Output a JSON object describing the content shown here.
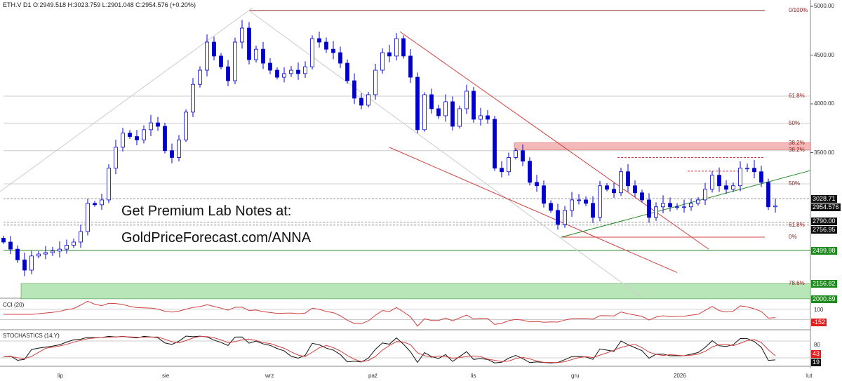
{
  "header": {
    "text": "ETH.V  D1  O:2949.518  H:3023.759  L:2901.048  C:2954.576  (+0.20%)"
  },
  "promo": {
    "line1": "Get Premium Lab Notes at:",
    "line2": "GoldPriceForecast.com/ANNA"
  },
  "colors": {
    "candle": "#0000cc",
    "fib": "#8b1a1a",
    "channel": "#d04040",
    "green": "#2a8a2a",
    "band_red": "#f4b8b8",
    "band_green": "#b8e6b8"
  },
  "chart_data": {
    "type": "candlestick",
    "symbol": "ETH.V",
    "timeframe": "D1",
    "ylim": [
      1950,
      5050
    ],
    "yticks": [
      "5000.00",
      "4500.00",
      "4000.00",
      "3500.00"
    ],
    "ytick_values": [
      5000,
      4500,
      4000,
      3500
    ],
    "xticks": [
      {
        "label": "lip",
        "i": 8.3
      },
      {
        "label": "sie",
        "i": 23.2
      },
      {
        "label": "wrz",
        "i": 37.9
      },
      {
        "label": "paź",
        "i": 52.6
      },
      {
        "label": "lis",
        "i": 67.2
      },
      {
        "label": "gru",
        "i": 81.5
      },
      {
        "label": "2026",
        "i": 96.1
      },
      {
        "label": "lut",
        "i": 115
      }
    ],
    "closes": [
      2583,
      2510,
      2400,
      2295,
      2440,
      2460,
      2475,
      2490,
      2510,
      2550,
      2583,
      2690,
      2980,
      2965,
      3015,
      3340,
      3555,
      3700,
      3665,
      3630,
      3735,
      3805,
      3770,
      3520,
      3450,
      3630,
      3915,
      4200,
      4345,
      4633,
      4490,
      4380,
      4237,
      4633,
      4777,
      4453,
      4560,
      4417,
      4345,
      4273,
      4310,
      4345,
      4310,
      4380,
      4669,
      4633,
      4560,
      4525,
      4417,
      4237,
      4058,
      3986,
      4094,
      4345,
      4525,
      4490,
      4669,
      4490,
      4273,
      3735,
      4094,
      3950,
      3878,
      4022,
      3770,
      3950,
      4130,
      3842,
      3878,
      3842,
      3340,
      3304,
      3450,
      3520,
      3412,
      3195,
      3160,
      2980,
      2908,
      2764,
      2908,
      3015,
      3015,
      2980,
      2836,
      3160,
      3124,
      3088,
      3304,
      3160,
      3088,
      3015,
      2836,
      2944,
      2980,
      2944,
      2944,
      2944,
      2980,
      3015,
      3124,
      3268,
      3160,
      3124,
      3160,
      3340,
      3340,
      3304,
      3195,
      2944,
      2954
    ],
    "hlines": [
      {
        "price": 4956,
        "label": "0/100%",
        "color": "#8b1a1a",
        "from": 35,
        "to": 108.5
      },
      {
        "price": 4079,
        "label": "61.8%",
        "color": "#cccccc",
        "from": 0,
        "to": 115
      },
      {
        "price": 3800,
        "label": "50%",
        "color": "#cccccc",
        "from": 0,
        "to": 115
      },
      {
        "price": 3520,
        "label": "38.2%",
        "color": "#cccccc",
        "from": 0,
        "to": 115
      },
      {
        "price": 3180,
        "label": "50%",
        "color": "#cccccc",
        "from": 0,
        "to": 115
      },
      {
        "price": 3029,
        "label": "",
        "color": "#999999",
        "from": 0,
        "to": 115,
        "dash": true
      },
      {
        "price": 2786,
        "label": "",
        "color": "#999999",
        "from": 0,
        "to": 115,
        "dash": true
      },
      {
        "price": 2757,
        "label": "61.8%",
        "color": "#999999",
        "from": 0,
        "to": 115,
        "dash": true
      },
      {
        "price": 2633,
        "label": "0%",
        "color": "#d04040",
        "from": 79.5,
        "to": 108.5
      },
      {
        "price": 2500,
        "label": "",
        "color": "#2a8a2a",
        "from": 0,
        "to": 115
      },
      {
        "price": 3450,
        "label": "",
        "color": "#d04040",
        "from": 87.5,
        "to": 108.5,
        "dash": true
      },
      {
        "price": 3310,
        "label": "",
        "color": "#d04040",
        "from": 97.5,
        "to": 105.5,
        "dash": true
      }
    ],
    "fib_labels": [
      {
        "text": "0/100%",
        "price": 4956
      },
      {
        "text": "61.8%",
        "price": 4079
      },
      {
        "text": "50%",
        "price": 3800
      },
      {
        "text": "38.2%",
        "price": 3600
      },
      {
        "text": "38.2%",
        "price": 3530
      },
      {
        "text": "50%",
        "price": 3180
      },
      {
        "text": "61.8%",
        "price": 2757
      },
      {
        "text": "0%",
        "price": 2633
      },
      {
        "text": "78.6%",
        "price": 2156
      }
    ],
    "bands": [
      {
        "top": 3600,
        "bottom": 3530,
        "from": 72.8,
        "to": 115,
        "kind": "red"
      },
      {
        "top": 2156.82,
        "bottom": 2000.69,
        "from": 2.5,
        "to": 115,
        "kind": "green"
      }
    ],
    "trendlines": [
      {
        "i1": -0.5,
        "p1": 3100,
        "i2": 35.5,
        "p2": 4985,
        "color": "#cccccc"
      },
      {
        "i1": 35,
        "p1": 4956,
        "i2": 91,
        "p2": 2015,
        "color": "#cccccc"
      },
      {
        "i1": 56.5,
        "p1": 4740,
        "i2": 100.5,
        "p2": 2510,
        "color": "#d04040"
      },
      {
        "i1": 55,
        "p1": 3554,
        "i2": 96,
        "p2": 2270,
        "color": "#d04040"
      },
      {
        "i1": 79.5,
        "p1": 2633,
        "i2": 115,
        "p2": 3316,
        "color": "#2a8a2a"
      }
    ],
    "price_labels": [
      {
        "text": "3028.71",
        "price": 3029,
        "bg": "#111"
      },
      {
        "text": "2954.576",
        "price": 2940,
        "bg": "#111"
      },
      {
        "text": "2790.00",
        "price": 2800,
        "bg": "#111"
      },
      {
        "text": "2756.95",
        "price": 2757,
        "bg": "#111"
      },
      {
        "text": "2499.98",
        "price": 2500,
        "bg": "#1e8a1e"
      },
      {
        "text": "2156.82",
        "price": 2156,
        "bg": "#1e8a1e"
      },
      {
        "text": "2000.69",
        "price": 2000,
        "bg": "#1e8a1e"
      }
    ],
    "cci": {
      "label": "CCI (20)",
      "level": "100",
      "last": "-152"
    },
    "stoch": {
      "label": "STOCHASTICS (14,Y)",
      "level": "80",
      "k_last": "43",
      "d_last": "19"
    }
  }
}
